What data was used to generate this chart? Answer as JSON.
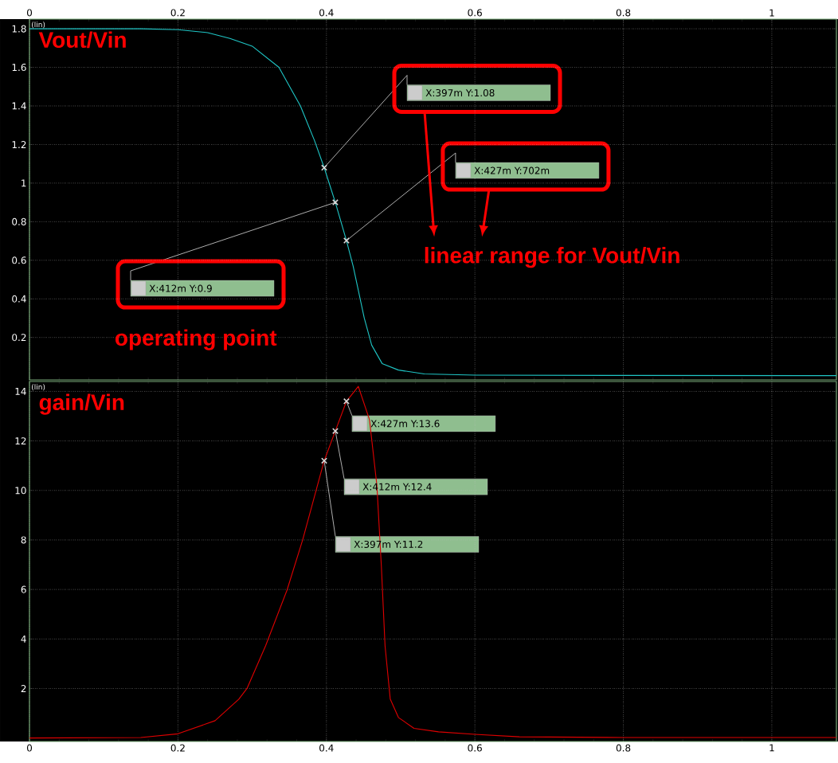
{
  "chart_data": [
    {
      "type": "line",
      "title": "Vout/Vin",
      "ylabel": "(lin)",
      "x": [
        0,
        0.15,
        0.2,
        0.24,
        0.27,
        0.3,
        0.336,
        0.365,
        0.384,
        0.397,
        0.412,
        0.427,
        0.436,
        0.451,
        0.461,
        0.475,
        0.497,
        0.532,
        0.6,
        0.8,
        1.087
      ],
      "series": [
        {
          "color": "#1fc6c6",
          "values": [
            1.8,
            1.8,
            1.795,
            1.78,
            1.75,
            1.71,
            1.6,
            1.4,
            1.22,
            1.08,
            0.9,
            0.702,
            0.57,
            0.3,
            0.16,
            0.065,
            0.031,
            0.011,
            0.005,
            0.003,
            0.002
          ]
        },
        {
          "type": "scatter",
          "marker": "cross",
          "color": "#d9d9d9",
          "x": [
            0.397,
            0.412,
            0.427
          ],
          "values": [
            1.08,
            0.9,
            0.702
          ]
        }
      ],
      "xlim": [
        0,
        1.087
      ],
      "ylim": [
        -0.02,
        1.85
      ],
      "xticks": [
        0,
        0.2,
        0.4,
        0.6,
        0.8,
        1
      ],
      "yticks": [
        0.2,
        0.4,
        0.6,
        0.8,
        1,
        1.2,
        1.4,
        1.6,
        1.8
      ],
      "grid": true,
      "annotations": [
        "X:397m Y:1.08",
        "X:412m Y:0.9",
        "X:427m Y:702m",
        "operating point",
        "linear range for Vout/Vin"
      ]
    },
    {
      "type": "line",
      "title": "gain/Vin",
      "ylabel": "(lin)",
      "x": [
        0,
        0.15,
        0.2,
        0.25,
        0.282,
        0.293,
        0.318,
        0.347,
        0.368,
        0.397,
        0.412,
        0.427,
        0.443,
        0.458,
        0.468,
        0.474,
        0.479,
        0.486,
        0.497,
        0.518,
        0.551,
        0.6,
        0.66,
        0.8,
        1.087
      ],
      "series": [
        {
          "color": "#e00000",
          "values": [
            0,
            0.02,
            0.17,
            0.7,
            1.57,
            2.0,
            3.72,
            5.98,
            8.0,
            11.2,
            12.4,
            13.6,
            14.2,
            12.86,
            10.2,
            6.95,
            3.72,
            1.57,
            0.83,
            0.39,
            0.25,
            0.15,
            0.05,
            0.02,
            0.02
          ]
        },
        {
          "type": "scatter",
          "marker": "cross",
          "color": "#d9d9d9",
          "x": [
            0.427,
            0.412,
            0.397
          ],
          "values": [
            13.6,
            12.4,
            11.2
          ]
        }
      ],
      "xlim": [
        0,
        1.087
      ],
      "ylim": [
        -0.14,
        14.4
      ],
      "xticks": [
        0,
        0.2,
        0.4,
        0.6,
        0.8,
        1
      ],
      "yticks": [
        2,
        4,
        6,
        8,
        10,
        12,
        14
      ],
      "grid": true,
      "annotations": [
        "X:427m Y:13.6",
        "X:412m Y:12.4",
        "X:397m Y:11.2"
      ]
    }
  ]
}
